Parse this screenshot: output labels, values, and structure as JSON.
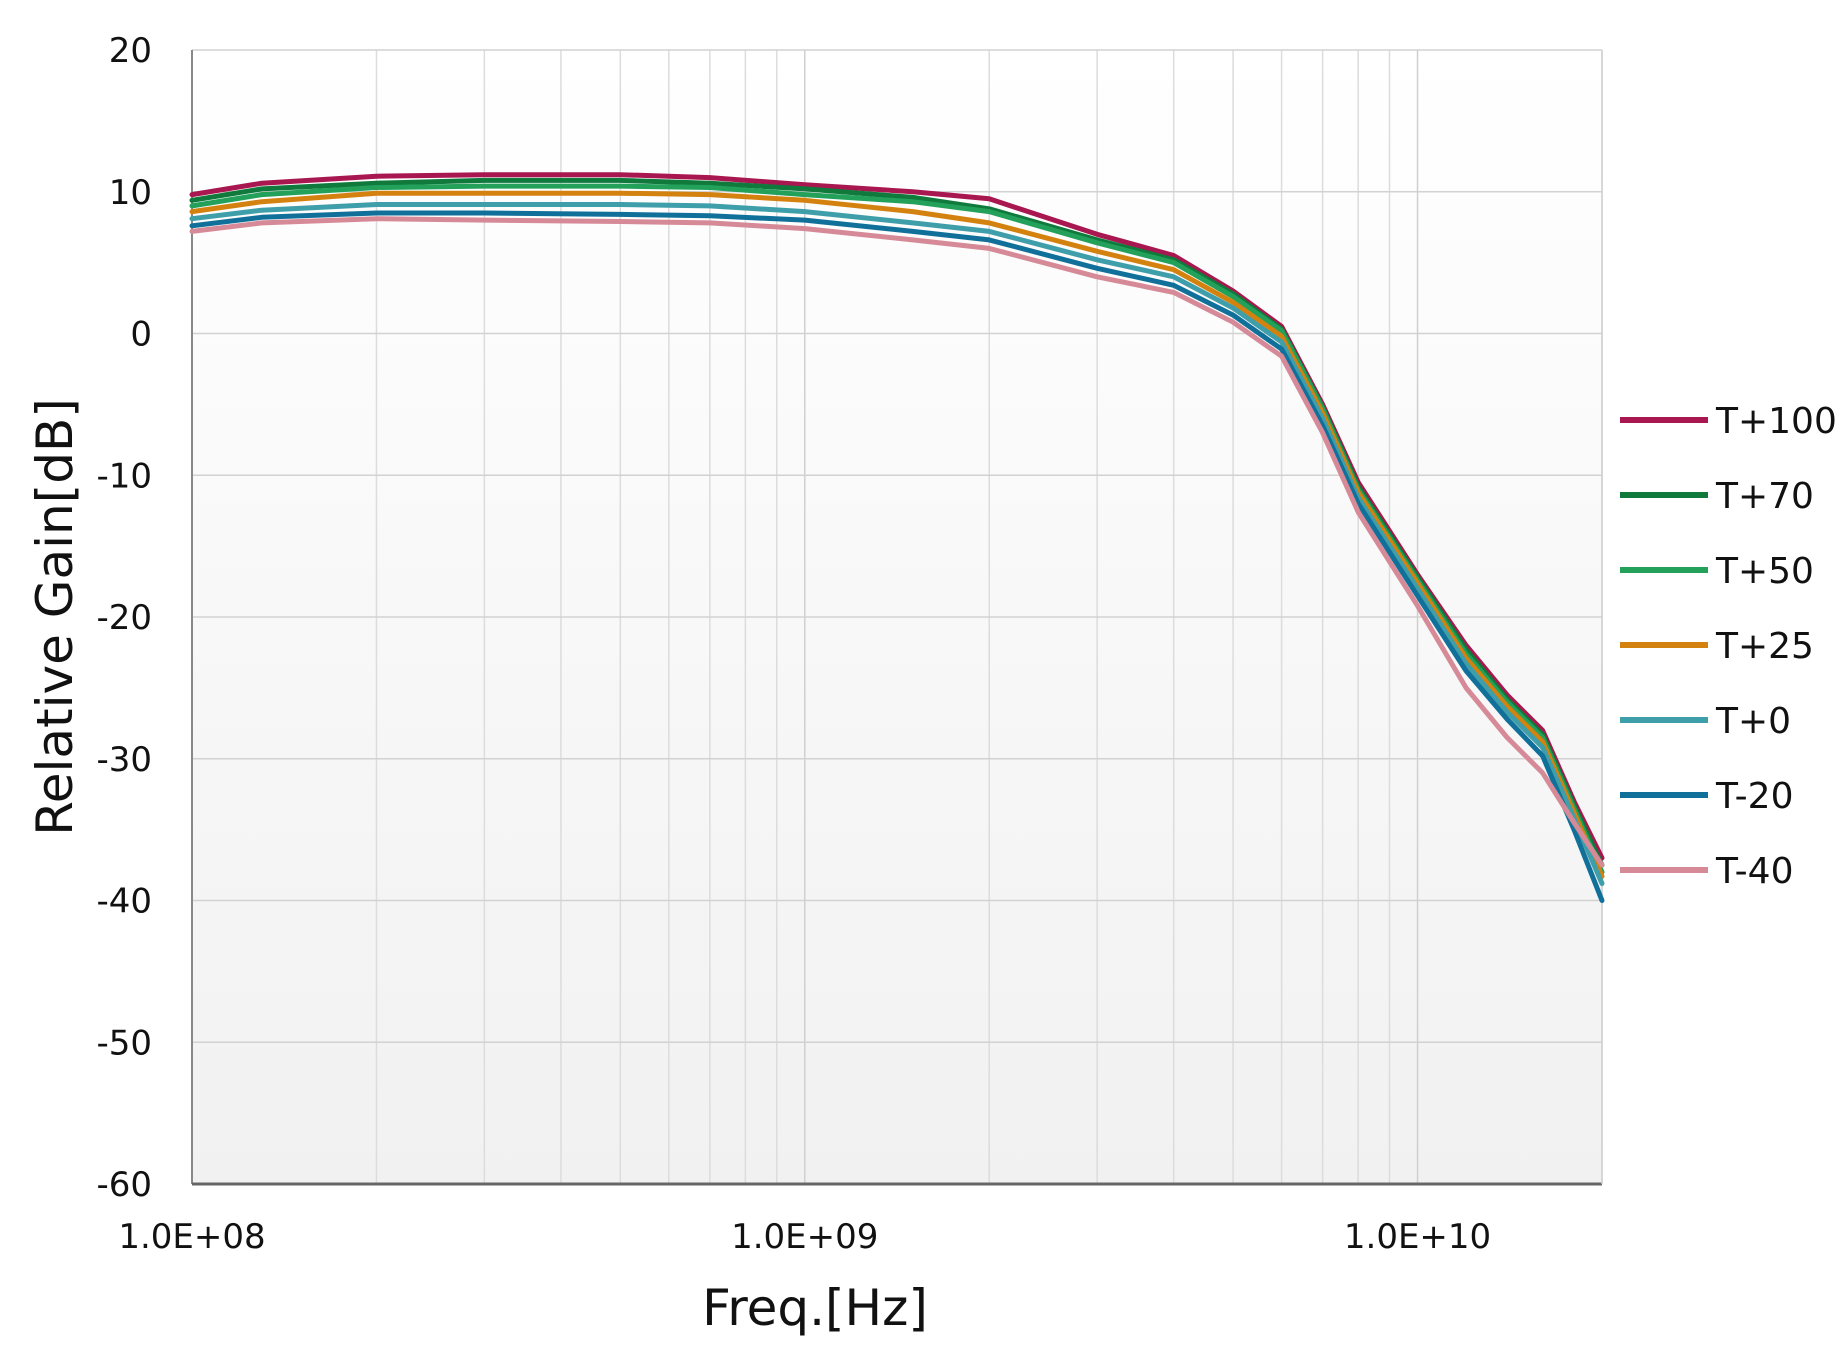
{
  "chart_data": {
    "type": "line",
    "xlabel": "Freq.[Hz]",
    "ylabel": "Relative Gain[dB]",
    "x_scale": "log",
    "xlim": [
      100000000,
      20000000000
    ],
    "ylim": [
      -60,
      20
    ],
    "x_ticks": [
      {
        "value": 100000000,
        "label": "1.0E+08"
      },
      {
        "value": 1000000000,
        "label": "1.0E+09"
      },
      {
        "value": 10000000000,
        "label": "1.0E+10"
      }
    ],
    "y_ticks": [
      {
        "value": 20,
        "label": "20"
      },
      {
        "value": 10,
        "label": "10"
      },
      {
        "value": 0,
        "label": "0"
      },
      {
        "value": -10,
        "label": "-10"
      },
      {
        "value": -20,
        "label": "-20"
      },
      {
        "value": -30,
        "label": "-30"
      },
      {
        "value": -40,
        "label": "-40"
      },
      {
        "value": -50,
        "label": "-50"
      },
      {
        "value": -60,
        "label": "-60"
      }
    ],
    "grid": true,
    "legend_position": "right",
    "series": [
      {
        "name": "T+100",
        "color": "#a8174f",
        "x": [
          100000000.0,
          130000000.0,
          200000000.0,
          300000000.0,
          500000000.0,
          700000000.0,
          1000000000.0,
          1500000000.0,
          2000000000.0,
          3000000000.0,
          4000000000.0,
          5000000000.0,
          6000000000.0,
          7000000000.0,
          8000000000.0,
          10000000000.0,
          12000000000.0,
          14000000000.0,
          16000000000.0,
          18000000000.0,
          20000000000.0
        ],
        "y": [
          9.8,
          10.6,
          11.1,
          11.2,
          11.2,
          11.0,
          10.5,
          10.0,
          9.5,
          7.0,
          5.5,
          3.0,
          0.5,
          -5.0,
          -10.5,
          -17.0,
          -22.0,
          -25.5,
          -28.0,
          -33.0,
          -37.0
        ]
      },
      {
        "name": "T+70",
        "color": "#0f7a3c",
        "x": [
          100000000.0,
          130000000.0,
          200000000.0,
          300000000.0,
          500000000.0,
          700000000.0,
          1000000000.0,
          1500000000.0,
          2000000000.0,
          3000000000.0,
          4000000000.0,
          5000000000.0,
          6000000000.0,
          7000000000.0,
          8000000000.0,
          10000000000.0,
          12000000000.0,
          14000000000.0,
          16000000000.0,
          18000000000.0,
          20000000000.0
        ],
        "y": [
          9.4,
          10.2,
          10.6,
          10.8,
          10.8,
          10.6,
          10.2,
          9.6,
          8.8,
          6.6,
          5.2,
          2.8,
          0.3,
          -5.2,
          -10.8,
          -17.2,
          -22.3,
          -25.8,
          -28.3,
          -33.3,
          -37.5
        ]
      },
      {
        "name": "T+50",
        "color": "#23a05a",
        "x": [
          100000000.0,
          130000000.0,
          200000000.0,
          300000000.0,
          500000000.0,
          700000000.0,
          1000000000.0,
          1500000000.0,
          2000000000.0,
          3000000000.0,
          4000000000.0,
          5000000000.0,
          6000000000.0,
          7000000000.0,
          8000000000.0,
          10000000000.0,
          12000000000.0,
          14000000000.0,
          16000000000.0,
          18000000000.0,
          20000000000.0
        ],
        "y": [
          9.0,
          9.8,
          10.3,
          10.4,
          10.4,
          10.3,
          9.8,
          9.3,
          8.6,
          6.4,
          5.0,
          2.6,
          0.2,
          -5.3,
          -11.0,
          -17.4,
          -22.6,
          -26.0,
          -28.5,
          -33.5,
          -38.0
        ]
      },
      {
        "name": "T+25",
        "color": "#d4820f",
        "x": [
          100000000.0,
          130000000.0,
          200000000.0,
          300000000.0,
          500000000.0,
          700000000.0,
          1000000000.0,
          1500000000.0,
          2000000000.0,
          3000000000.0,
          4000000000.0,
          5000000000.0,
          6000000000.0,
          7000000000.0,
          8000000000.0,
          10000000000.0,
          12000000000.0,
          14000000000.0,
          16000000000.0,
          18000000000.0,
          20000000000.0
        ],
        "y": [
          8.6,
          9.3,
          9.9,
          9.9,
          9.9,
          9.8,
          9.4,
          8.6,
          7.8,
          5.8,
          4.5,
          2.2,
          -0.2,
          -5.6,
          -11.2,
          -17.6,
          -22.9,
          -26.3,
          -28.8,
          -33.8,
          -38.3
        ]
      },
      {
        "name": "T+0",
        "color": "#3e9eaa",
        "x": [
          100000000.0,
          130000000.0,
          200000000.0,
          300000000.0,
          500000000.0,
          700000000.0,
          1000000000.0,
          1500000000.0,
          2000000000.0,
          3000000000.0,
          4000000000.0,
          5000000000.0,
          6000000000.0,
          7000000000.0,
          8000000000.0,
          10000000000.0,
          12000000000.0,
          14000000000.0,
          16000000000.0,
          18000000000.0,
          20000000000.0
        ],
        "y": [
          8.1,
          8.7,
          9.1,
          9.1,
          9.1,
          9.0,
          8.6,
          7.8,
          7.2,
          5.2,
          4.0,
          1.8,
          -0.6,
          -6.0,
          -11.6,
          -18.0,
          -23.3,
          -26.7,
          -29.2,
          -34.2,
          -38.8
        ]
      },
      {
        "name": "T-20",
        "color": "#11709a",
        "x": [
          100000000.0,
          130000000.0,
          200000000.0,
          300000000.0,
          500000000.0,
          700000000.0,
          1000000000.0,
          1500000000.0,
          2000000000.0,
          3000000000.0,
          4000000000.0,
          5000000000.0,
          6000000000.0,
          7000000000.0,
          8000000000.0,
          10000000000.0,
          12000000000.0,
          14000000000.0,
          16000000000.0,
          18000000000.0,
          20000000000.0
        ],
        "y": [
          7.6,
          8.2,
          8.5,
          8.5,
          8.4,
          8.3,
          8.0,
          7.2,
          6.6,
          4.6,
          3.4,
          1.3,
          -1.1,
          -6.5,
          -12.0,
          -18.5,
          -23.8,
          -27.2,
          -29.8,
          -35.0,
          -40.0
        ]
      },
      {
        "name": "T-40",
        "color": "#d68a98",
        "x": [
          100000000.0,
          130000000.0,
          200000000.0,
          300000000.0,
          500000000.0,
          700000000.0,
          1000000000.0,
          1500000000.0,
          2000000000.0,
          3000000000.0,
          4000000000.0,
          5000000000.0,
          6000000000.0,
          7000000000.0,
          8000000000.0,
          10000000000.0,
          12000000000.0,
          14000000000.0,
          16000000000.0,
          18000000000.0,
          20000000000.0
        ],
        "y": [
          7.2,
          7.8,
          8.1,
          8.0,
          7.9,
          7.8,
          7.4,
          6.6,
          6.0,
          4.0,
          2.9,
          0.8,
          -1.6,
          -7.0,
          -12.6,
          -19.2,
          -25.0,
          -28.5,
          -31.0,
          -34.5,
          -37.5
        ]
      }
    ]
  }
}
